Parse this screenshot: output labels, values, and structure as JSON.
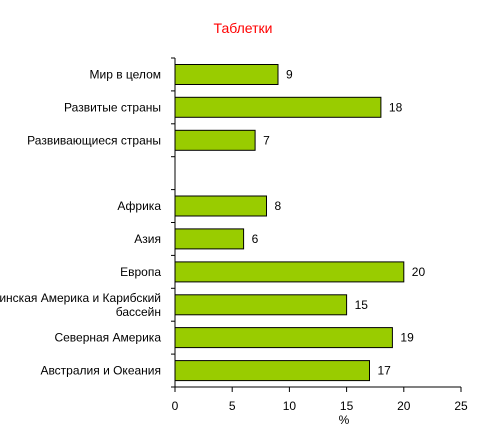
{
  "chart_data": {
    "type": "bar",
    "orientation": "horizontal",
    "title": "Таблетки",
    "xlabel": "%",
    "ylabel": "",
    "xlim": [
      0,
      25
    ],
    "x_ticks": [
      "0",
      "5",
      "10",
      "15",
      "20",
      "25"
    ],
    "grid": false,
    "legend": "none",
    "categories": [
      "Мир в целом",
      "Развитые страны",
      "Развивающиеся страны",
      "",
      "Африка",
      "Азия",
      "Европа",
      "Латинская Америка и Карибский бассейн",
      "Северная Америка",
      "Австралия и Океания"
    ],
    "values": [
      9,
      18,
      7,
      null,
      8,
      6,
      20,
      15,
      19,
      17
    ],
    "value_labels": [
      "9",
      "18",
      "7",
      "",
      "8",
      "6",
      "20",
      "15",
      "19",
      "17"
    ]
  },
  "colors": {
    "bar_fill": "#99CC00",
    "bar_stroke": "#000000",
    "title": "#FF0000",
    "axis": "#000000"
  }
}
